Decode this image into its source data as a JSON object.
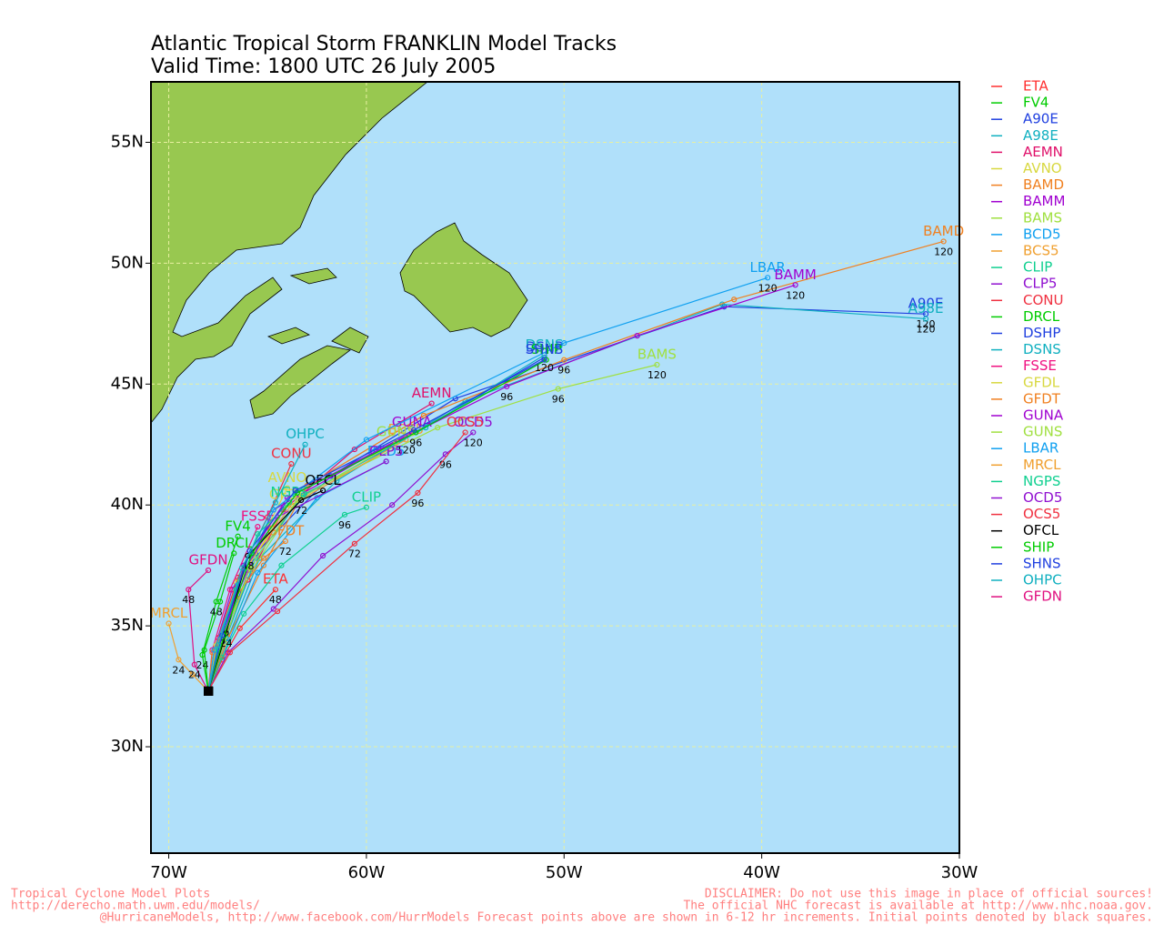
{
  "chart_data": {
    "type": "map",
    "title": "Atlantic Tropical Storm FRANKLIN Model Tracks",
    "subtitle": "Valid Time: 1800 UTC 26 July 2005",
    "xlim": [
      -70.9,
      -30
    ],
    "ylim": [
      25.6,
      57.5
    ],
    "xticks": [
      {
        "value": -70,
        "label": "70W"
      },
      {
        "value": -60,
        "label": "60W"
      },
      {
        "value": -50,
        "label": "50W"
      },
      {
        "value": -40,
        "label": "40W"
      },
      {
        "value": -30,
        "label": "30W"
      }
    ],
    "yticks": [
      {
        "value": 30,
        "label": "30N"
      },
      {
        "value": 35,
        "label": "35N"
      },
      {
        "value": 40,
        "label": "40N"
      },
      {
        "value": 45,
        "label": "45N"
      },
      {
        "value": 50,
        "label": "50N"
      },
      {
        "value": 55,
        "label": "55N"
      }
    ],
    "grid": true,
    "series": [
      {
        "name": "ETA",
        "color": "#ff3030",
        "x": [
          -68.0,
          -67.3,
          -66.4,
          -64.6
        ],
        "y": [
          32.3,
          33.6,
          34.9,
          36.5
        ],
        "hours": [
          null,
          null,
          null,
          48
        ]
      },
      {
        "name": "FV4",
        "color": "#00cc00",
        "x": [
          -68.0,
          -68.3,
          -67.6,
          -66.5
        ],
        "y": [
          32.3,
          33.8,
          36.0,
          38.7
        ],
        "hours": [
          null,
          24,
          48,
          null
        ]
      },
      {
        "name": "A90E",
        "color": "#2040e0",
        "x": [
          -68.0,
          -67.2,
          -65.6,
          -61.8,
          -55.5,
          -41.9,
          -31.7
        ],
        "y": [
          32.3,
          34.6,
          38.0,
          41.2,
          44.4,
          48.2,
          47.9
        ],
        "hours": [
          null,
          null,
          null,
          null,
          null,
          null,
          120
        ]
      },
      {
        "name": "A98E",
        "color": "#10b0c0",
        "x": [
          -68.0,
          -67.0,
          -65.4,
          -61.5,
          -55.0,
          -42.0,
          -31.7
        ],
        "y": [
          32.3,
          34.5,
          37.8,
          41.0,
          44.3,
          48.3,
          47.7
        ],
        "hours": [
          null,
          null,
          null,
          null,
          null,
          null,
          120
        ]
      },
      {
        "name": "AEMN",
        "color": "#e0106a",
        "x": [
          -68.0,
          -67.3,
          -66.0,
          -64.2,
          -60.6,
          -56.7
        ],
        "y": [
          32.3,
          34.2,
          36.9,
          39.8,
          42.3,
          44.2
        ],
        "hours": [
          null,
          null,
          null,
          null,
          null,
          null
        ]
      },
      {
        "name": "AVNO",
        "color": "#d8d840",
        "x": [
          -68.0,
          -67.5,
          -66.2,
          -64.0
        ],
        "y": [
          32.3,
          34.3,
          37.2,
          40.7
        ],
        "hours": [
          null,
          null,
          null,
          null
        ]
      },
      {
        "name": "BAMD",
        "color": "#f08020",
        "x": [
          -68.0,
          -67.0,
          -65.2,
          -63.0,
          -57.1,
          -50.0,
          -41.4,
          -30.8
        ],
        "y": [
          32.3,
          34.5,
          37.5,
          40.8,
          43.7,
          46.0,
          48.5,
          50.9
        ],
        "hours": [
          null,
          null,
          null,
          null,
          null,
          96,
          null,
          120
        ]
      },
      {
        "name": "BAMM",
        "color": "#a000d0",
        "x": [
          -68.0,
          -67.5,
          -66.0,
          -64.7,
          -59.5,
          -52.9,
          -46.3,
          -38.3
        ],
        "y": [
          32.3,
          34.5,
          37.3,
          39.8,
          42.2,
          44.9,
          47.0,
          49.1
        ],
        "hours": [
          null,
          null,
          null,
          null,
          null,
          96,
          null,
          120
        ]
      },
      {
        "name": "BAMS",
        "color": "#a0e040",
        "x": [
          -68.0,
          -67.4,
          -65.8,
          -63.3,
          -56.4,
          -50.3,
          -45.3
        ],
        "y": [
          32.3,
          34.4,
          37.3,
          40.4,
          43.2,
          44.8,
          45.8
        ],
        "hours": [
          null,
          null,
          null,
          null,
          null,
          96,
          120
        ]
      },
      {
        "name": "BCD5",
        "color": "#10a0f0",
        "x": [
          -68.0,
          -67.0,
          -65.5,
          -62.5,
          -59.0
        ],
        "y": [
          32.3,
          34.3,
          37.2,
          40.3,
          41.8
        ],
        "hours": [
          null,
          null,
          null,
          null,
          null
        ]
      },
      {
        "name": "BCS5",
        "color": "#f0a030",
        "x": [
          -68.0,
          -67.6,
          -66.6,
          -63.8,
          -58.0
        ],
        "y": [
          32.3,
          34.0,
          36.8,
          40.0,
          42.7
        ],
        "hours": [
          null,
          null,
          null,
          null,
          120
        ]
      },
      {
        "name": "CLIP",
        "color": "#10d090",
        "x": [
          -68.0,
          -67.3,
          -66.2,
          -64.3,
          -61.1,
          -60.0
        ],
        "y": [
          32.3,
          33.7,
          35.5,
          37.5,
          39.6,
          39.9
        ],
        "hours": [
          null,
          null,
          null,
          null,
          96,
          null
        ]
      },
      {
        "name": "CLP5",
        "color": "#9010d0",
        "x": [
          -68.0,
          -67.7,
          -66.8,
          -64.5,
          -59.0
        ],
        "y": [
          32.3,
          34.0,
          36.5,
          39.5,
          41.8
        ],
        "hours": [
          null,
          null,
          null,
          null,
          null
        ]
      },
      {
        "name": "CONU",
        "color": "#f03040",
        "x": [
          -68.0,
          -67.5,
          -66.5,
          -65.0,
          -63.8
        ],
        "y": [
          32.3,
          34.5,
          37.0,
          39.5,
          41.7
        ],
        "hours": [
          null,
          null,
          null,
          null,
          null
        ]
      },
      {
        "name": "DRCL",
        "color": "#00cc00",
        "x": [
          -68.0,
          -68.2,
          -67.4,
          -66.7
        ],
        "y": [
          32.3,
          34.0,
          36.0,
          38.0
        ],
        "hours": [
          null,
          null,
          null,
          null
        ]
      },
      {
        "name": "DSHP",
        "color": "#2040e0",
        "x": [
          -68.0,
          -67.2,
          -65.8,
          -63.5,
          -57.5,
          -51.0
        ],
        "y": [
          32.3,
          34.6,
          38.0,
          40.5,
          43.0,
          46.1
        ],
        "hours": [
          null,
          null,
          null,
          null,
          96,
          120
        ]
      },
      {
        "name": "DSNS",
        "color": "#10b0c0",
        "x": [
          -68.0,
          -67.1,
          -65.6,
          -63.2,
          -57.0,
          -51.0
        ],
        "y": [
          32.3,
          34.5,
          37.8,
          40.4,
          43.2,
          46.2
        ],
        "hours": [
          null,
          null,
          null,
          null,
          null,
          null
        ]
      },
      {
        "name": "FSSE",
        "color": "#f01080",
        "x": [
          -68.0,
          -67.8,
          -66.9,
          -65.5
        ],
        "y": [
          32.3,
          34.0,
          36.5,
          39.1
        ],
        "hours": [
          null,
          null,
          null,
          null
        ]
      },
      {
        "name": "GFDL",
        "color": "#d8d840",
        "x": [
          -68.0,
          -67.6,
          -66.5,
          -64.0
        ],
        "y": [
          32.3,
          34.2,
          36.8,
          40.0
        ],
        "hours": [
          null,
          null,
          null,
          null
        ]
      },
      {
        "name": "GFDT",
        "color": "#f08020",
        "x": [
          -68.0,
          -67.8,
          -66.6,
          -65.2,
          -64.1
        ],
        "y": [
          32.3,
          33.9,
          36.2,
          37.8,
          38.5
        ],
        "hours": [
          null,
          null,
          null,
          null,
          72
        ]
      },
      {
        "name": "GUNA",
        "color": "#a000d0",
        "x": [
          -68.0,
          -67.3,
          -66.2,
          -64.0,
          -57.7
        ],
        "y": [
          32.3,
          34.3,
          37.5,
          40.3,
          43.0
        ],
        "hours": [
          null,
          null,
          null,
          null,
          null
        ]
      },
      {
        "name": "GUNS",
        "color": "#a0e040",
        "x": [
          -68.0,
          -67.2,
          -65.9,
          -63.5,
          -58.5
        ],
        "y": [
          32.3,
          34.3,
          37.4,
          40.2,
          42.6
        ],
        "hours": [
          null,
          null,
          null,
          null,
          null
        ]
      },
      {
        "name": "LBAR",
        "color": "#10a0f0",
        "x": [
          -68.0,
          -67.7,
          -66.5,
          -64.7,
          -60.0,
          -50.0,
          -39.7
        ],
        "y": [
          32.3,
          34.0,
          36.7,
          39.8,
          42.7,
          46.7,
          49.4
        ],
        "hours": [
          null,
          null,
          null,
          null,
          null,
          null,
          120
        ]
      },
      {
        "name": "MRCL",
        "color": "#f0a030",
        "x": [
          -68.0,
          -68.8,
          -69.5,
          -70.0
        ],
        "y": [
          32.3,
          33.0,
          33.6,
          35.1
        ],
        "hours": [
          null,
          null,
          24,
          null
        ]
      },
      {
        "name": "NGPS",
        "color": "#10d090",
        "x": [
          -68.0,
          -67.5,
          -66.6,
          -65.5,
          -63.9
        ],
        "y": [
          32.3,
          34.0,
          36.5,
          38.8,
          40.1
        ],
        "hours": [
          null,
          null,
          null,
          null,
          null
        ]
      },
      {
        "name": "OCD5",
        "color": "#9010d0",
        "x": [
          -68.0,
          -67.0,
          -64.7,
          -62.2,
          -58.7,
          -56.0,
          -54.6
        ],
        "y": [
          32.3,
          33.9,
          35.7,
          37.9,
          40.0,
          42.1,
          43.0
        ],
        "hours": [
          null,
          null,
          null,
          null,
          null,
          96,
          120
        ]
      },
      {
        "name": "OCS5",
        "color": "#f03040",
        "x": [
          -68.0,
          -66.9,
          -64.5,
          -60.6,
          -57.4,
          -55.0
        ],
        "y": [
          32.3,
          33.9,
          35.6,
          38.4,
          40.5,
          43.0
        ],
        "hours": [
          null,
          null,
          null,
          72,
          96,
          null
        ]
      },
      {
        "name": "OFCL",
        "color": "#000000",
        "x": [
          -68.0,
          -67.1,
          -66.0,
          -63.3,
          -62.2
        ],
        "y": [
          32.3,
          34.7,
          37.9,
          40.2,
          40.6
        ],
        "hours": [
          null,
          24,
          48,
          72,
          null
        ]
      },
      {
        "name": "SHIP",
        "color": "#00cc00",
        "x": [
          -68.0,
          -67.2,
          -65.8,
          -63.5,
          -57.5,
          -50.9
        ],
        "y": [
          32.3,
          34.6,
          38.0,
          40.5,
          43.0,
          46.0
        ],
        "hours": [
          null,
          null,
          null,
          null,
          null,
          null
        ]
      },
      {
        "name": "SHNS",
        "color": "#2040e0",
        "x": [
          -68.0,
          -67.3,
          -65.9,
          -63.6,
          -57.6,
          -51.0
        ],
        "y": [
          32.3,
          34.6,
          38.1,
          40.6,
          43.1,
          46.0
        ],
        "hours": [
          null,
          null,
          null,
          null,
          null,
          null
        ]
      },
      {
        "name": "OHPC",
        "color": "#10b0c0",
        "x": [
          -68.0,
          -67.5,
          -66.3,
          -64.6,
          -63.1
        ],
        "y": [
          32.3,
          34.2,
          37.4,
          40.1,
          42.5
        ],
        "hours": [
          null,
          null,
          null,
          null,
          null
        ]
      },
      {
        "name": "GFDN",
        "color": "#e01080",
        "x": [
          -68.0,
          -68.7,
          -69.0,
          -68.0
        ],
        "y": [
          32.3,
          33.4,
          36.5,
          37.3
        ],
        "hours": [
          null,
          24,
          48,
          null
        ]
      }
    ]
  },
  "footer": {
    "left": [
      "Tropical Cyclone Model Plots",
      "http://derecho.math.uwm.edu/models/"
    ],
    "right": [
      "DISCLAIMER: Do not use this image in place of official sources!",
      "The official NHC forecast is available at http://www.nhc.noaa.gov."
    ],
    "bottom": "@HurricaneModels, http://www.facebook.com/HurrModels  Forecast points above are shown in 6-12 hr increments.  Initial points denoted by black squares."
  }
}
